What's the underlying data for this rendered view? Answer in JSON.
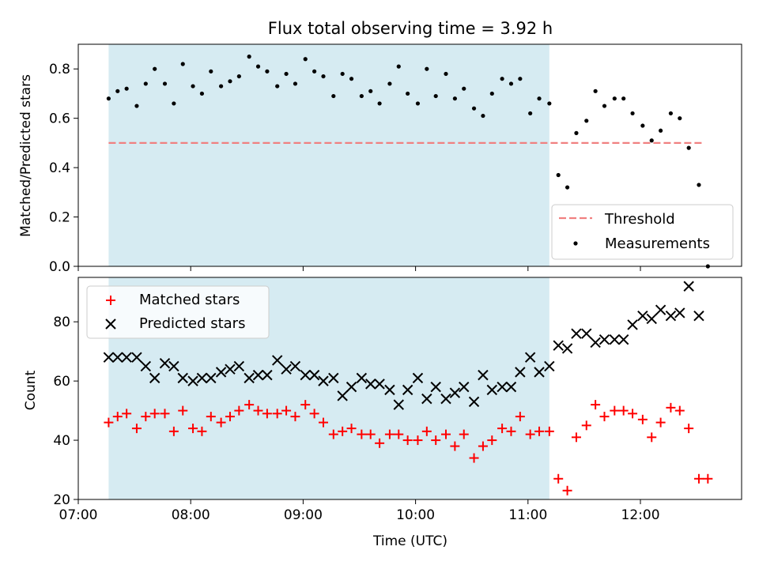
{
  "chart_data": [
    {
      "type": "scatter",
      "title": "Flux total observing time = 3.92 h",
      "ylabel": "Matched/Predicted stars",
      "xlabel": "",
      "xlim_hours": [
        7.0,
        12.9
      ],
      "ylim": [
        0.0,
        0.9
      ],
      "yticks": [
        0.0,
        0.2,
        0.4,
        0.6,
        0.8
      ],
      "ytick_labels": [
        "0.0",
        "0.2",
        "0.4",
        "0.6",
        "0.8"
      ],
      "xticks_hours": [
        7,
        8,
        9,
        10,
        11,
        12
      ],
      "shaded_span_hours": [
        7.27,
        11.19
      ],
      "shade_color": "#add8e6",
      "threshold": {
        "label": "Threshold",
        "value": 0.5,
        "x_range_hours": [
          7.27,
          12.57
        ],
        "color": "#f08080"
      },
      "legend": {
        "placement": "lower-right",
        "entries": [
          "Threshold",
          "Measurements"
        ]
      },
      "series": [
        {
          "name": "Measurements",
          "marker": "point",
          "color": "#000000",
          "x_hours": [
            7.27,
            7.35,
            7.43,
            7.52,
            7.6,
            7.68,
            7.77,
            7.85,
            7.93,
            8.02,
            8.1,
            8.18,
            8.27,
            8.35,
            8.43,
            8.52,
            8.6,
            8.68,
            8.77,
            8.85,
            8.93,
            9.02,
            9.1,
            9.18,
            9.27,
            9.35,
            9.43,
            9.52,
            9.6,
            9.68,
            9.77,
            9.85,
            9.93,
            10.02,
            10.1,
            10.18,
            10.27,
            10.35,
            10.43,
            10.52,
            10.6,
            10.68,
            10.77,
            10.85,
            10.93,
            11.02,
            11.1,
            11.19,
            11.27,
            11.35,
            11.43,
            11.52,
            11.6,
            11.68,
            11.77,
            11.85,
            11.93,
            12.02,
            12.1,
            12.18,
            12.27,
            12.35,
            12.43,
            12.52,
            12.6
          ],
          "values": [
            0.68,
            0.71,
            0.72,
            0.65,
            0.74,
            0.8,
            0.74,
            0.66,
            0.82,
            0.73,
            0.7,
            0.79,
            0.73,
            0.75,
            0.77,
            0.85,
            0.81,
            0.79,
            0.73,
            0.78,
            0.74,
            0.84,
            0.79,
            0.77,
            0.69,
            0.78,
            0.76,
            0.69,
            0.71,
            0.66,
            0.74,
            0.81,
            0.7,
            0.66,
            0.8,
            0.69,
            0.78,
            0.68,
            0.72,
            0.64,
            0.61,
            0.7,
            0.76,
            0.74,
            0.76,
            0.62,
            0.68,
            0.66,
            0.37,
            0.32,
            0.54,
            0.59,
            0.71,
            0.65,
            0.68,
            0.68,
            0.62,
            0.57,
            0.51,
            0.55,
            0.62,
            0.6,
            0.48,
            0.33,
            0.0
          ]
        }
      ]
    },
    {
      "type": "scatter",
      "title": "",
      "ylabel": "Count",
      "xlabel": "Time (UTC)",
      "xlim_hours": [
        7.0,
        12.9
      ],
      "ylim": [
        20,
        95
      ],
      "yticks": [
        20,
        40,
        60,
        80
      ],
      "ytick_labels": [
        "20",
        "40",
        "60",
        "80"
      ],
      "xticks_hours": [
        7,
        8,
        9,
        10,
        11,
        12
      ],
      "xtick_labels": [
        "07:00",
        "08:00",
        "09:00",
        "10:00",
        "11:00",
        "12:00"
      ],
      "shaded_span_hours": [
        7.27,
        11.19
      ],
      "shade_color": "#add8e6",
      "legend": {
        "placement": "upper-left",
        "entries": [
          "Matched stars",
          "Predicted stars"
        ]
      },
      "series": [
        {
          "name": "Matched stars",
          "marker": "plus",
          "color": "#ff0000",
          "x_hours": [
            7.27,
            7.35,
            7.43,
            7.52,
            7.6,
            7.68,
            7.77,
            7.85,
            7.93,
            8.02,
            8.1,
            8.18,
            8.27,
            8.35,
            8.43,
            8.52,
            8.6,
            8.68,
            8.77,
            8.85,
            8.93,
            9.02,
            9.1,
            9.18,
            9.27,
            9.35,
            9.43,
            9.52,
            9.6,
            9.68,
            9.77,
            9.85,
            9.93,
            10.02,
            10.1,
            10.18,
            10.27,
            10.35,
            10.43,
            10.52,
            10.6,
            10.68,
            10.77,
            10.85,
            10.93,
            11.02,
            11.1,
            11.19,
            11.27,
            11.35,
            11.43,
            11.52,
            11.6,
            11.68,
            11.77,
            11.85,
            11.93,
            12.02,
            12.1,
            12.18,
            12.27,
            12.35,
            12.43,
            12.52,
            12.6
          ],
          "values": [
            46,
            48,
            49,
            44,
            48,
            49,
            49,
            43,
            50,
            44,
            43,
            48,
            46,
            48,
            50,
            52,
            50,
            49,
            49,
            50,
            48,
            52,
            49,
            46,
            42,
            43,
            44,
            42,
            42,
            39,
            42,
            42,
            40,
            40,
            43,
            40,
            42,
            38,
            42,
            34,
            38,
            40,
            44,
            43,
            48,
            42,
            43,
            43,
            27,
            23,
            41,
            45,
            52,
            48,
            50,
            50,
            49,
            47,
            41,
            46,
            51,
            50,
            44,
            27,
            27
          ]
        },
        {
          "name": "Predicted stars",
          "marker": "x",
          "color": "#000000",
          "x_hours": [
            7.27,
            7.35,
            7.43,
            7.52,
            7.6,
            7.68,
            7.77,
            7.85,
            7.93,
            8.02,
            8.1,
            8.18,
            8.27,
            8.35,
            8.43,
            8.52,
            8.6,
            8.68,
            8.77,
            8.85,
            8.93,
            9.02,
            9.1,
            9.18,
            9.27,
            9.35,
            9.43,
            9.52,
            9.6,
            9.68,
            9.77,
            9.85,
            9.93,
            10.02,
            10.1,
            10.18,
            10.27,
            10.35,
            10.43,
            10.52,
            10.6,
            10.68,
            10.77,
            10.85,
            10.93,
            11.02,
            11.1,
            11.19,
            11.27,
            11.35,
            11.43,
            11.52,
            11.6,
            11.68,
            11.77,
            11.85,
            11.93,
            12.02,
            12.1,
            12.18,
            12.27,
            12.35,
            12.43,
            12.52
          ],
          "values": [
            68,
            68,
            68,
            68,
            65,
            61,
            66,
            65,
            61,
            60,
            61,
            61,
            63,
            64,
            65,
            61,
            62,
            62,
            67,
            64,
            65,
            62,
            62,
            60,
            61,
            55,
            58,
            61,
            59,
            59,
            57,
            52,
            57,
            61,
            54,
            58,
            54,
            56,
            58,
            53,
            62,
            57,
            58,
            58,
            63,
            68,
            63,
            65,
            72,
            71,
            76,
            76,
            73,
            74,
            74,
            74,
            79,
            82,
            81,
            84,
            82,
            83,
            92,
            82
          ]
        }
      ]
    }
  ]
}
